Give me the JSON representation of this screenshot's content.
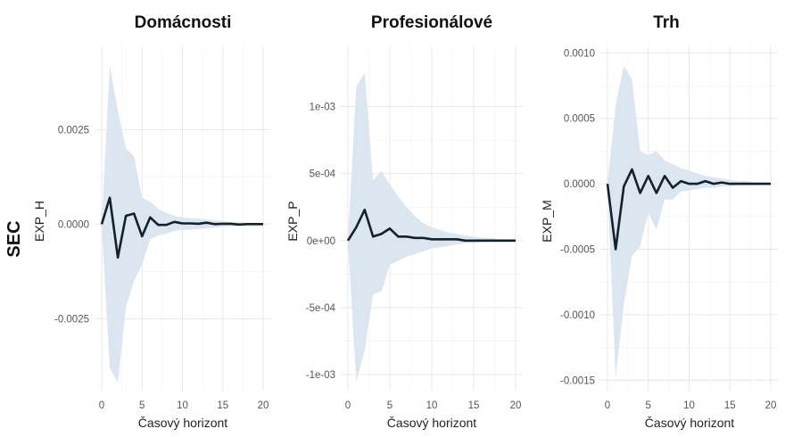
{
  "row_label": "SEC",
  "chart_data": [
    {
      "type": "line",
      "title": "Domácnosti",
      "xlabel": "Časový horizont",
      "ylabel": "EXP_H",
      "xlim": [
        0,
        20
      ],
      "ylim": [
        -0.0044,
        0.0047
      ],
      "xticks": [
        0,
        5,
        10,
        15,
        20
      ],
      "xtick_labels": [
        "0",
        "5",
        "10",
        "15",
        "20"
      ],
      "yticks": [
        -0.0025,
        0.0,
        0.0025
      ],
      "ytick_labels": [
        "-0.0025",
        "0.0000",
        "0.0025"
      ],
      "grid": true,
      "x": [
        0,
        1,
        2,
        3,
        4,
        5,
        6,
        7,
        8,
        9,
        10,
        11,
        12,
        13,
        14,
        15,
        16,
        17,
        18,
        19,
        20
      ],
      "series": [
        {
          "values": [
            0.0,
            0.0007,
            -0.00088,
            0.00022,
            0.00028,
            -0.00032,
            0.00018,
            -2e-05,
            -2e-05,
            6e-05,
            2e-05,
            2e-05,
            1e-05,
            4e-05,
            0.0,
            1e-05,
            1e-05,
            -1e-05,
            0.0,
            0.0,
            0.0
          ],
          "lower": [
            0.0,
            -0.0038,
            -0.0042,
            -0.0022,
            -0.0015,
            -0.00108,
            -0.0004,
            -0.0003,
            -0.00025,
            -0.00018,
            -0.00015,
            -0.00015,
            -0.00013,
            -0.00011,
            -9e-05,
            -7e-05,
            -5e-05,
            -4e-05,
            -3e-05,
            -2e-05,
            -1e-05
          ],
          "upper": [
            0.0,
            0.0042,
            0.003,
            0.002,
            0.0018,
            0.0007,
            0.0006,
            0.0004,
            0.0003,
            0.00022,
            0.00018,
            0.00016,
            0.00015,
            0.00012,
            0.0001,
            8e-05,
            6e-05,
            5e-05,
            4e-05,
            3e-05,
            2e-05
          ]
        }
      ]
    },
    {
      "type": "line",
      "title": "Profesionálové",
      "xlabel": "Časový horizont",
      "ylabel": "EXP_P",
      "xlim": [
        0,
        20
      ],
      "ylim": [
        -0.00112,
        0.00145
      ],
      "xticks": [
        0,
        5,
        10,
        15,
        20
      ],
      "xtick_labels": [
        "0",
        "5",
        "10",
        "15",
        "20"
      ],
      "yticks": [
        -0.001,
        -0.0005,
        0.0,
        0.0005,
        0.001
      ],
      "ytick_labels": [
        "-1e-03",
        "-5e-04",
        "0e+00",
        "5e-04",
        "1e-03"
      ],
      "grid": true,
      "x": [
        0,
        1,
        2,
        3,
        4,
        5,
        6,
        7,
        8,
        9,
        10,
        11,
        12,
        13,
        14,
        15,
        16,
        17,
        18,
        19,
        20
      ],
      "series": [
        {
          "values": [
            0.0,
            0.0001,
            0.00023,
            3e-05,
            5e-05,
            9e-05,
            3e-05,
            3e-05,
            2e-05,
            2e-05,
            1e-05,
            1e-05,
            1e-05,
            1e-05,
            0.0,
            0.0,
            0.0,
            0.0,
            0.0,
            0.0,
            0.0
          ],
          "lower": [
            0.0,
            -0.00105,
            -0.00082,
            -0.0004,
            -0.00038,
            -0.00018,
            -0.00015,
            -0.00012,
            -0.0001,
            -8e-05,
            -6e-05,
            -5e-05,
            -4e-05,
            -3e-05,
            -2e-05,
            -2e-05,
            -1e-05,
            -1e-05,
            -1e-05,
            -1e-05,
            0.0
          ],
          "upper": [
            0.0,
            0.00115,
            0.00125,
            0.00045,
            0.00052,
            0.00042,
            0.00033,
            0.00025,
            0.00018,
            0.00013,
            0.0001,
            8e-05,
            6e-05,
            5e-05,
            4e-05,
            3e-05,
            2e-05,
            2e-05,
            1e-05,
            1e-05,
            0.0
          ]
        }
      ]
    },
    {
      "type": "line",
      "title": "Trh",
      "xlabel": "Časový horizont",
      "ylabel": "EXP_M",
      "xlim": [
        0,
        20
      ],
      "ylim": [
        -0.00158,
        0.00105
      ],
      "xticks": [
        0,
        5,
        10,
        15,
        20
      ],
      "xtick_labels": [
        "0",
        "5",
        "10",
        "15",
        "20"
      ],
      "yticks": [
        -0.0015,
        -0.001,
        -0.0005,
        0.0,
        0.0005,
        0.001
      ],
      "ytick_labels": [
        "-0.0015",
        "-0.0010",
        "-0.0005",
        "0.0000",
        "0.0005",
        "0.0010"
      ],
      "grid": true,
      "x": [
        0,
        1,
        2,
        3,
        4,
        5,
        6,
        7,
        8,
        9,
        10,
        11,
        12,
        13,
        14,
        15,
        16,
        17,
        18,
        19,
        20
      ],
      "series": [
        {
          "values": [
            0.0,
            -0.0005,
            -2e-05,
            0.00011,
            -7e-05,
            6e-05,
            -7e-05,
            6e-05,
            -3e-05,
            2e-05,
            0.0,
            0.0,
            2e-05,
            0.0,
            1e-05,
            0.0,
            0.0,
            0.0,
            0.0,
            0.0,
            0.0
          ],
          "lower": [
            0.0,
            -0.00148,
            -0.00092,
            -0.00055,
            -0.00048,
            -0.00022,
            -0.00035,
            -0.00012,
            -0.00012,
            -6e-05,
            -5e-05,
            -4e-05,
            -3e-05,
            -3e-05,
            -2e-05,
            -2e-05,
            -1e-05,
            -1e-05,
            -1e-05,
            0.0,
            0.0
          ],
          "upper": [
            0.0,
            0.0006,
            0.0009,
            0.0008,
            0.00025,
            0.00022,
            0.00025,
            0.00018,
            0.00015,
            0.00012,
            0.0001,
            8e-05,
            6e-05,
            5e-05,
            4e-05,
            3e-05,
            2e-05,
            2e-05,
            1e-05,
            1e-05,
            0.0
          ]
        }
      ]
    }
  ]
}
